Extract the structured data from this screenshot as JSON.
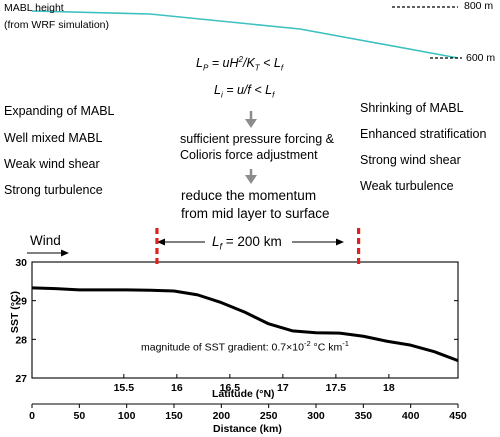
{
  "mabl": {
    "label_line1": "MABL height",
    "label_line2": "(from WRF simulation)",
    "top_height": "800 m",
    "bottom_height": "600 m",
    "line_color": "#3cc0c0"
  },
  "equations": {
    "lp": "L",
    "lp_sub": "P",
    "lp_rest": " = uH",
    "lp_sup": "2",
    "lp_div": "/K",
    "lp_div_sub": "T",
    "lp_lt": " < L",
    "lp_lt_sub": "f",
    "li": "L",
    "li_sub": "i",
    "li_rest": " = u/f < L",
    "li_lt_sub": "f"
  },
  "left_list": [
    "Expanding of MABL",
    "Well mixed MABL",
    "Weak wind shear",
    "Strong turbulence"
  ],
  "center_text": {
    "line1": "sufficient pressure forcing &",
    "line2": "Colioris force adjustment",
    "line3": "reduce the momentum",
    "line4": "from mid layer to surface"
  },
  "right_list": [
    "Shrinking  of MABL",
    "Enhanced stratification",
    "Strong wind shear",
    "Weak turbulence"
  ],
  "wind_label": "Wind",
  "lf_label": {
    "symbol": "L",
    "sub": "f",
    "rest": " = 200 km"
  },
  "boundary_color": "#e0201c",
  "plot": {
    "ylabel": "SST (°C)",
    "yticks": [
      "27",
      "28",
      "29",
      "30"
    ],
    "xlabel_top": "Latitude (°N)",
    "lat_ticks": [
      "15.5",
      "16",
      "16.5",
      "17",
      "17.5",
      "18"
    ],
    "xlabel_bottom": "Distance (km)",
    "dist_ticks": [
      "0",
      "50",
      "100",
      "150",
      "200",
      "250",
      "300",
      "350",
      "400",
      "450"
    ],
    "annotation_prefix": "magnitude of  SST gradient: 0.7×10",
    "annotation_exp": "-2",
    "annotation_unit": " °C km",
    "annotation_exp2": "-1"
  },
  "chart_data": {
    "type": "line",
    "x_unit": "Distance (km)",
    "ylim": [
      27,
      30
    ],
    "xlim": [
      0,
      450
    ],
    "series": [
      {
        "x": [
          0,
          25,
          50,
          75,
          100,
          125,
          150,
          175,
          200,
          225,
          250,
          275,
          300,
          325,
          350,
          375,
          400,
          425,
          450
        ],
        "values": [
          29.33,
          29.31,
          29.28,
          29.28,
          29.28,
          29.27,
          29.25,
          29.15,
          28.95,
          28.7,
          28.4,
          28.22,
          28.17,
          28.16,
          28.08,
          27.95,
          27.85,
          27.68,
          27.45
        ]
      }
    ],
    "boundaries_km": [
      132,
      345
    ]
  }
}
